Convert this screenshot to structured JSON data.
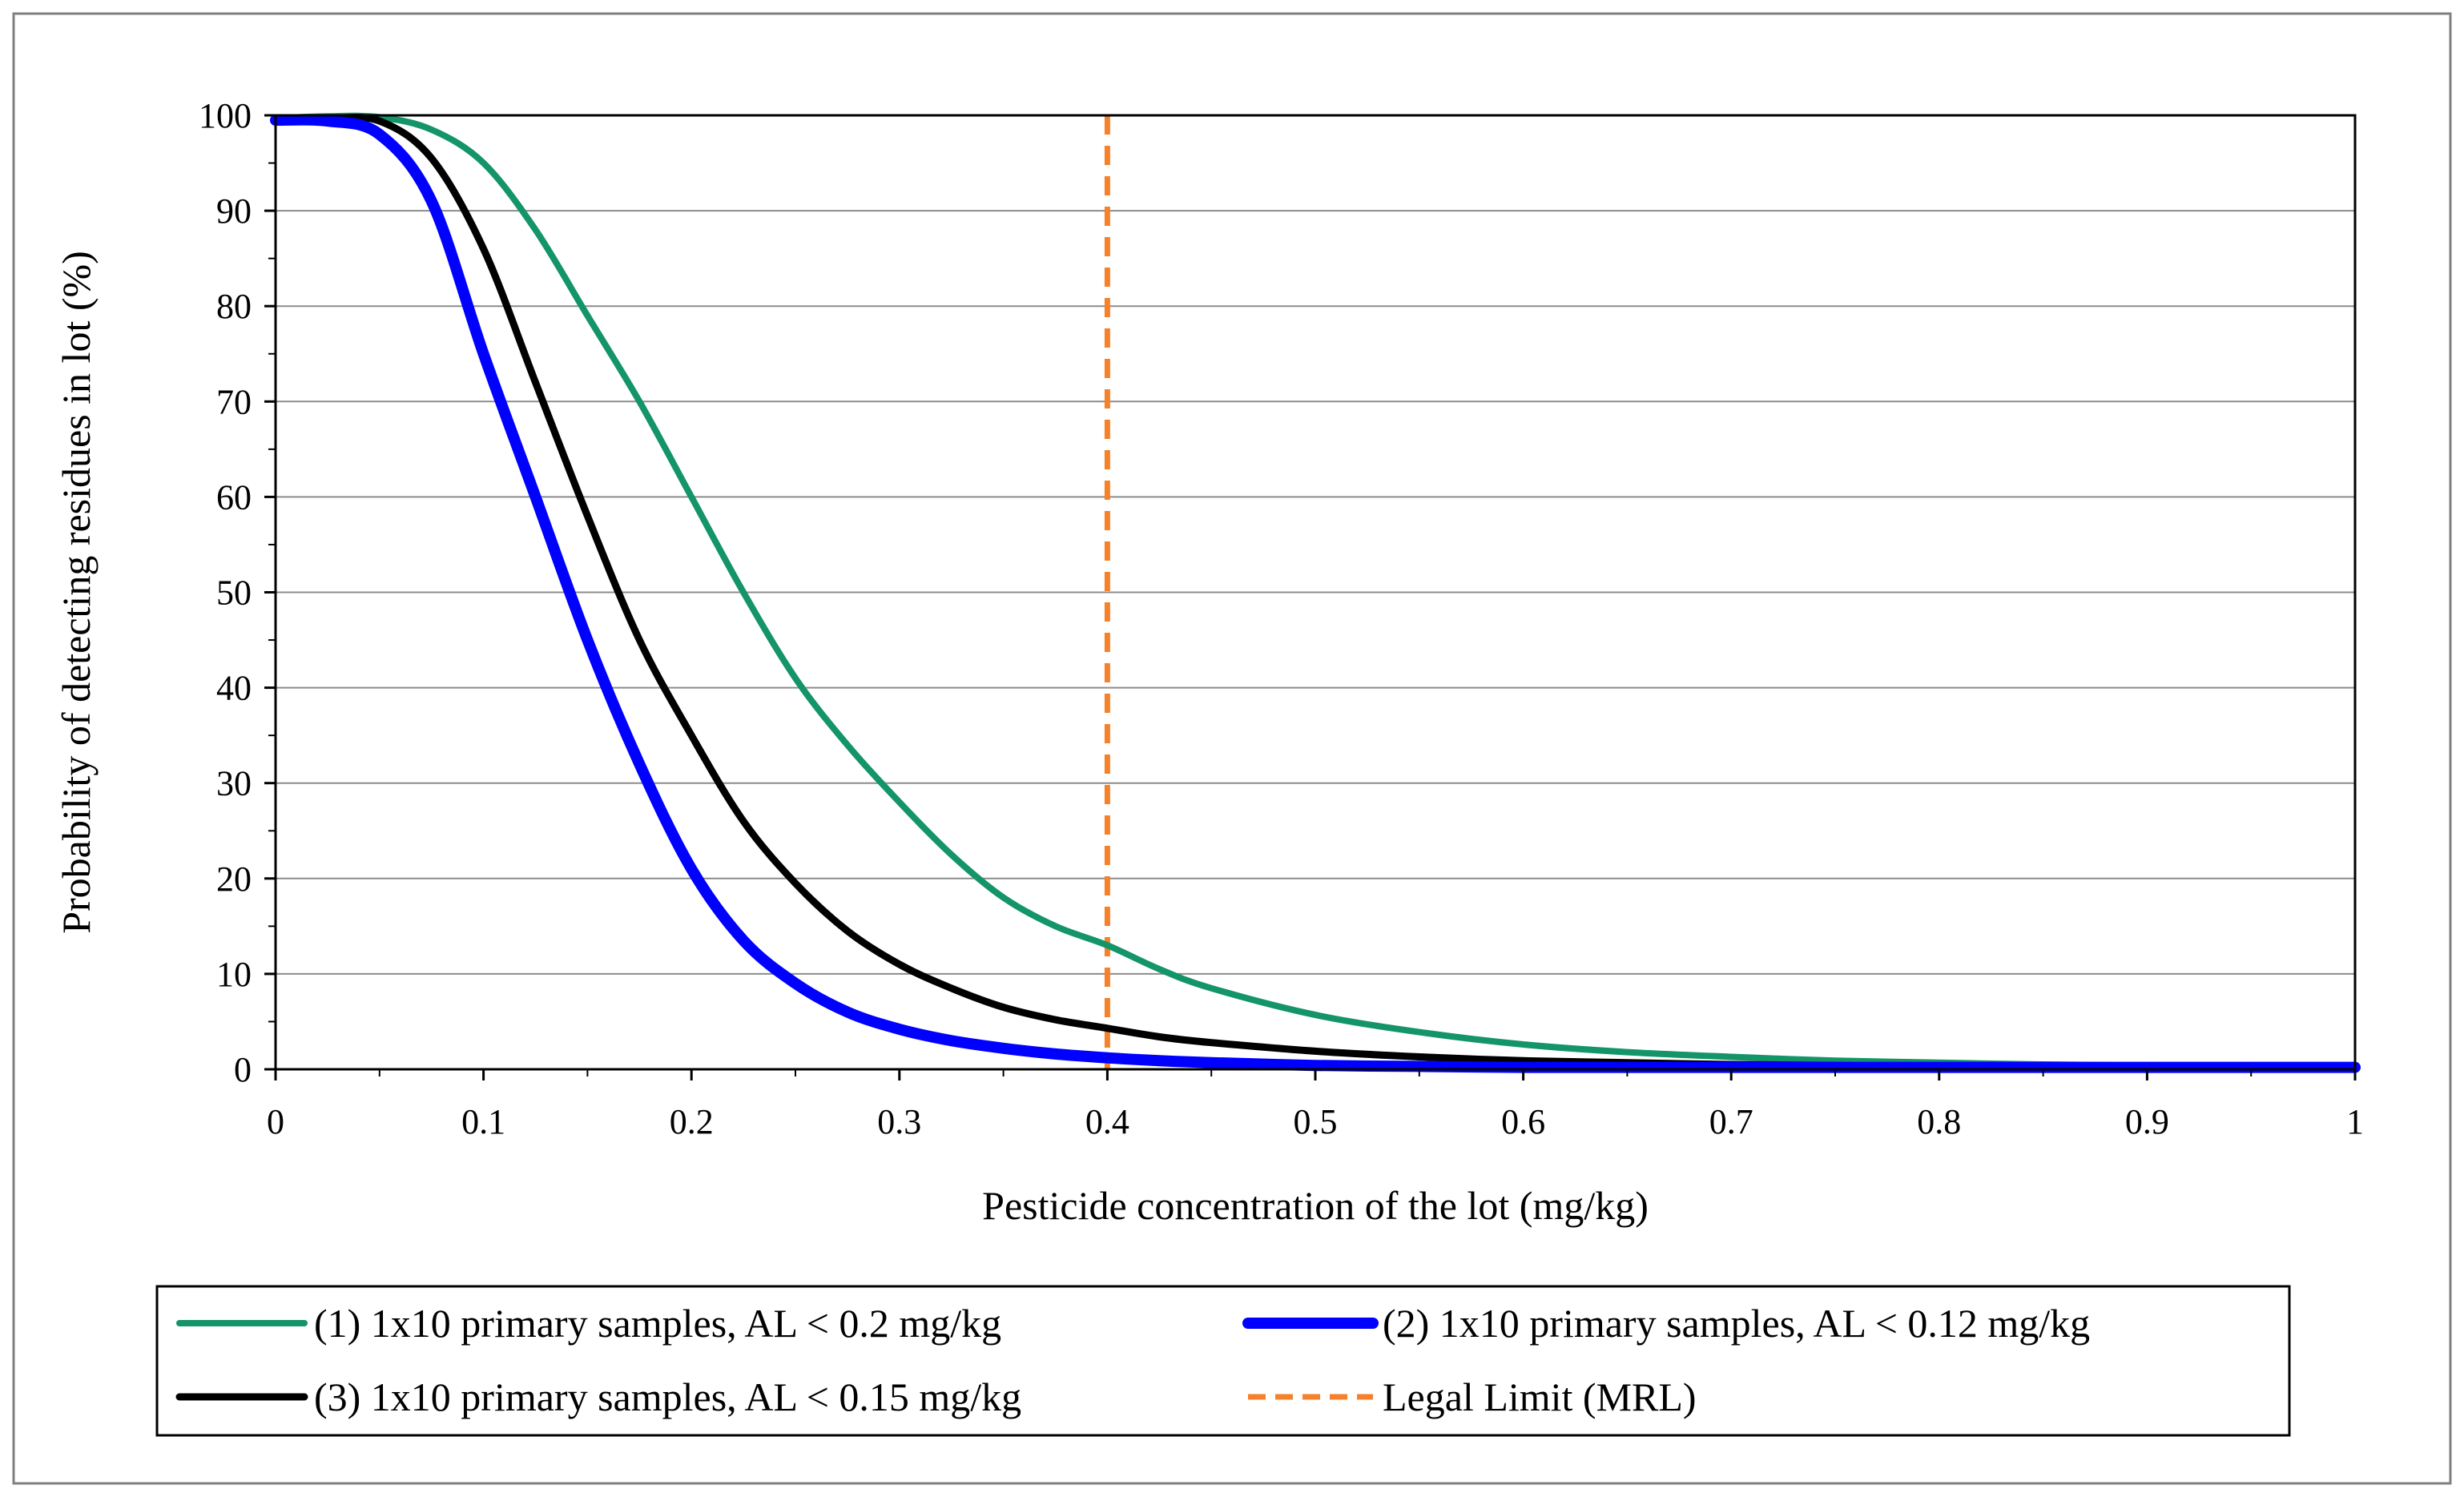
{
  "chart_data": {
    "type": "line",
    "title": "",
    "xlabel": "Pesticide concentration of the lot (mg/kg)",
    "ylabel": "Probability of detecting residues in lot (%)",
    "xlim": [
      0,
      1
    ],
    "ylim": [
      0,
      100
    ],
    "x_ticks": [
      "0",
      "0.1",
      "0.2",
      "0.3",
      "0.4",
      "0.5",
      "0.6",
      "0.7",
      "0.8",
      "0.9",
      "1"
    ],
    "y_ticks": [
      "0",
      "10",
      "20",
      "30",
      "40",
      "50",
      "60",
      "70",
      "80",
      "90",
      "100"
    ],
    "grid": "horizontal",
    "legend_position": "bottom",
    "x": [
      0,
      0.025,
      0.05,
      0.075,
      0.1,
      0.125,
      0.15,
      0.175,
      0.2,
      0.225,
      0.25,
      0.275,
      0.3,
      0.325,
      0.35,
      0.375,
      0.4,
      0.425,
      0.45,
      0.5,
      0.55,
      0.6,
      0.65,
      0.7,
      0.75,
      0.8,
      0.85,
      0.9,
      0.95,
      1.0
    ],
    "series": [
      {
        "name": "(1) 1x10 primary samples, AL < 0.2 mg/kg",
        "color": "#149469",
        "style": "solid",
        "values": [
          99.7,
          99.9,
          99.8,
          98.5,
          95,
          88,
          79,
          70,
          60,
          50,
          41,
          34,
          28,
          22.5,
          18,
          15,
          13,
          10.5,
          8.5,
          5.7,
          3.9,
          2.6,
          1.8,
          1.3,
          0.9,
          0.7,
          0.5,
          0.4,
          0.3,
          0.3
        ]
      },
      {
        "name": "(2) 1x10 primary samples, AL < 0.12 mg/kg",
        "color": "#0000ff",
        "style": "solid",
        "values": [
          99.5,
          99.4,
          98,
          91,
          75,
          60,
          45,
          32,
          21,
          13.5,
          9,
          6,
          4.2,
          3,
          2.2,
          1.6,
          1.2,
          0.9,
          0.7,
          0.4,
          0.3,
          0.2,
          0.2,
          0.2,
          0.2,
          0.2,
          0.2,
          0.2,
          0.2,
          0.2
        ]
      },
      {
        "name": "(3) 1x10 primary samples, AL < 0.15 mg/kg",
        "color": "#000000",
        "style": "solid",
        "values": [
          99.7,
          99.7,
          99.4,
          95.5,
          86,
          72,
          58,
          45,
          35,
          26,
          19.5,
          14.5,
          11,
          8.5,
          6.5,
          5.2,
          4.3,
          3.4,
          2.8,
          1.9,
          1.3,
          0.9,
          0.7,
          0.5,
          0.4,
          0.3,
          0.3,
          0.2,
          0.2,
          0.2
        ]
      }
    ],
    "reference_line": {
      "name": "Legal Limit (MRL)",
      "x": 0.4,
      "color": "#f5822a",
      "style": "dashed"
    }
  }
}
